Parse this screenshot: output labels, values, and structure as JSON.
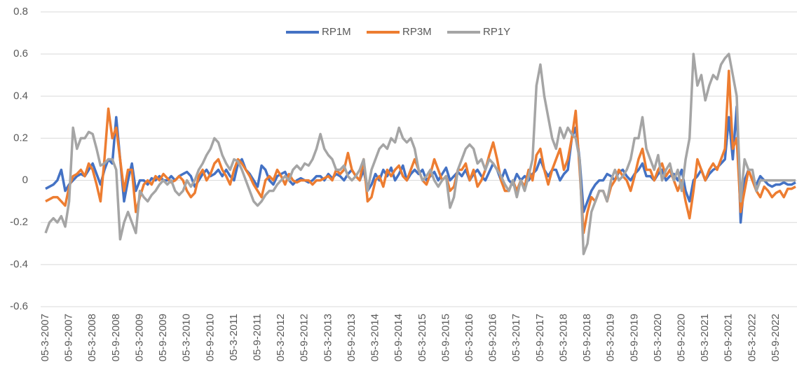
{
  "chart_data": {
    "type": "line",
    "categories": [
      "05-3-2007",
      null,
      null,
      null,
      null,
      null,
      "05-9-2007",
      null,
      null,
      null,
      null,
      null,
      "05-3-2008",
      null,
      null,
      null,
      null,
      null,
      "05-9-2008",
      null,
      null,
      null,
      null,
      null,
      "05-3-2009",
      null,
      null,
      null,
      null,
      null,
      "05-9-2009",
      null,
      null,
      null,
      null,
      null,
      "05-3-2010",
      null,
      null,
      null,
      null,
      null,
      "05-9-2010",
      null,
      null,
      null,
      null,
      null,
      "05-3-2011",
      null,
      null,
      null,
      null,
      null,
      "05-9-2011",
      null,
      null,
      null,
      null,
      null,
      "05-3-2012",
      null,
      null,
      null,
      null,
      null,
      "05-9-2012",
      null,
      null,
      null,
      null,
      null,
      "05-3-2013",
      null,
      null,
      null,
      null,
      null,
      "05-9-2013",
      null,
      null,
      null,
      null,
      null,
      "05-3-2014",
      null,
      null,
      null,
      null,
      null,
      "05-9-2014",
      null,
      null,
      null,
      null,
      null,
      "05-3-2015",
      null,
      null,
      null,
      null,
      null,
      "05-9-2015",
      null,
      null,
      null,
      null,
      null,
      "05-3-2016",
      null,
      null,
      null,
      null,
      null,
      "05-9-2016",
      null,
      null,
      null,
      null,
      null,
      "05-3-2017",
      null,
      null,
      null,
      null,
      null,
      "05-9-2017",
      null,
      null,
      null,
      null,
      null,
      "05-3-2018",
      null,
      null,
      null,
      null,
      null,
      "05-9-2018",
      null,
      null,
      null,
      null,
      null,
      "05-3-2019",
      null,
      null,
      null,
      null,
      null,
      "05-9-2019",
      null,
      null,
      null,
      null,
      null,
      "05-3-2020",
      null,
      null,
      null,
      null,
      null,
      "05-9-2020",
      null,
      null,
      null,
      null,
      null,
      "05-3-2021",
      null,
      null,
      null,
      null,
      null,
      "05-9-2021",
      null,
      null,
      null,
      null,
      null,
      "05-3-2022",
      null,
      null,
      null,
      null,
      null,
      "05-9-2022",
      null,
      null,
      null,
      null,
      null
    ],
    "series": [
      {
        "name": "RP1M",
        "color": "#4472c4",
        "values": [
          -0.04,
          -0.03,
          -0.02,
          0.0,
          0.05,
          -0.05,
          -0.02,
          0.0,
          0.02,
          0.03,
          0.02,
          0.05,
          0.08,
          0.03,
          -0.02,
          0.05,
          0.1,
          0.08,
          0.3,
          0.1,
          -0.1,
          0.0,
          0.08,
          -0.05,
          0.0,
          0.0,
          -0.02,
          0.01,
          0.0,
          0.02,
          0.0,
          0.0,
          0.02,
          0.0,
          0.02,
          0.03,
          0.04,
          0.02,
          -0.03,
          0.0,
          0.03,
          0.05,
          0.02,
          0.03,
          0.05,
          0.02,
          0.05,
          0.02,
          0.0,
          0.08,
          0.1,
          0.05,
          0.03,
          0.0,
          -0.03,
          0.07,
          0.05,
          0.0,
          -0.02,
          0.02,
          0.03,
          0.04,
          0.0,
          -0.02,
          0.0,
          0.01,
          0.0,
          -0.01,
          0.0,
          0.02,
          0.02,
          0.0,
          0.03,
          0.01,
          0.03,
          0.02,
          0.0,
          0.03,
          0.05,
          0.02,
          0.0,
          0.05,
          -0.05,
          -0.02,
          0.03,
          0.0,
          0.05,
          0.02,
          0.06,
          0.0,
          0.03,
          0.07,
          0.0,
          0.03,
          0.05,
          0.03,
          0.05,
          0.0,
          0.02,
          0.04,
          0.0,
          0.03,
          0.06,
          0.0,
          0.02,
          0.04,
          0.02,
          0.05,
          0.0,
          0.03,
          0.05,
          0.02,
          0.0,
          0.04,
          0.08,
          0.05,
          0.0,
          0.05,
          0.0,
          -0.02,
          0.03,
          0.0,
          0.02,
          0.0,
          0.03,
          0.05,
          0.1,
          0.05,
          0.02,
          0.05,
          0.05,
          0.0,
          0.03,
          0.05,
          0.2,
          0.25,
          0.1,
          -0.15,
          -0.1,
          -0.05,
          -0.02,
          0.0,
          0.0,
          0.03,
          0.02,
          0.0,
          0.04,
          0.05,
          0.02,
          0.0,
          0.03,
          0.05,
          0.08,
          0.02,
          0.02,
          0.0,
          0.03,
          0.05,
          0.0,
          0.02,
          0.03,
          0.0,
          0.05,
          -0.05,
          -0.1,
          0.0,
          0.02,
          0.05,
          0.0,
          0.03,
          0.05,
          0.06,
          0.08,
          0.1,
          0.3,
          0.1,
          0.35,
          -0.2,
          0.0,
          0.05,
          0.0,
          -0.02,
          0.02,
          0.0,
          -0.02,
          -0.03,
          -0.02,
          -0.02,
          -0.01,
          -0.02,
          -0.02,
          -0.01
        ]
      },
      {
        "name": "RP3M",
        "color": "#ed7d31",
        "values": [
          -0.1,
          -0.09,
          -0.08,
          -0.08,
          -0.1,
          -0.12,
          -0.03,
          0.02,
          0.03,
          0.05,
          0.02,
          0.08,
          0.05,
          -0.02,
          -0.1,
          0.1,
          0.34,
          0.2,
          0.25,
          0.1,
          -0.05,
          0.05,
          0.05,
          -0.15,
          -0.08,
          -0.02,
          0.0,
          -0.02,
          0.02,
          0.0,
          0.03,
          0.01,
          -0.01,
          0.0,
          0.02,
          0.0,
          -0.05,
          -0.08,
          -0.06,
          0.02,
          0.05,
          0.0,
          0.03,
          0.08,
          0.1,
          0.05,
          0.02,
          -0.02,
          0.05,
          0.1,
          0.08,
          0.05,
          0.02,
          -0.02,
          -0.05,
          -0.08,
          0.0,
          0.02,
          0.0,
          0.05,
          0.02,
          -0.02,
          0.03,
          0.0,
          -0.01,
          0.0,
          0.0,
          0.0,
          -0.02,
          0.0,
          0.0,
          0.01,
          0.02,
          0.0,
          0.05,
          0.03,
          0.05,
          0.13,
          0.05,
          0.02,
          0.0,
          0.1,
          -0.1,
          -0.08,
          0.0,
          0.02,
          -0.03,
          0.05,
          0.02,
          0.05,
          0.07,
          0.02,
          0.0,
          0.05,
          0.1,
          0.05,
          0.0,
          -0.02,
          0.03,
          0.1,
          0.05,
          0.0,
          0.02,
          -0.05,
          -0.03,
          0.05,
          0.05,
          0.08,
          0.0,
          0.05,
          -0.03,
          0.0,
          0.05,
          0.12,
          0.18,
          0.1,
          0.0,
          -0.05,
          -0.05,
          0.0,
          -0.05,
          0.0,
          -0.03,
          0.05,
          0.0,
          0.12,
          0.15,
          0.05,
          -0.02,
          0.05,
          0.1,
          0.15,
          0.05,
          0.1,
          0.2,
          0.33,
          0.05,
          -0.25,
          -0.15,
          -0.08,
          -0.1,
          -0.05,
          -0.05,
          -0.1,
          -0.03,
          0.0,
          0.05,
          0.02,
          0.0,
          -0.05,
          0.02,
          0.1,
          0.15,
          0.05,
          0.05,
          0.0,
          0.05,
          0.08,
          0.02,
          0.05,
          0.0,
          -0.05,
          0.0,
          -0.1,
          -0.18,
          -0.05,
          0.1,
          0.05,
          0.0,
          0.05,
          0.08,
          0.05,
          0.1,
          0.15,
          0.52,
          0.15,
          0.2,
          -0.15,
          -0.05,
          0.05,
          0.0,
          -0.05,
          -0.08,
          -0.03,
          -0.05,
          -0.08,
          -0.06,
          -0.05,
          -0.08,
          -0.04,
          -0.04,
          -0.03
        ]
      },
      {
        "name": "RP1Y",
        "color": "#a5a5a5",
        "values": [
          -0.25,
          -0.2,
          -0.18,
          -0.2,
          -0.17,
          -0.22,
          -0.1,
          0.25,
          0.15,
          0.2,
          0.2,
          0.23,
          0.22,
          0.15,
          0.07,
          0.08,
          0.1,
          0.1,
          0.05,
          -0.28,
          -0.2,
          -0.15,
          -0.2,
          -0.25,
          -0.05,
          -0.08,
          -0.1,
          -0.07,
          -0.05,
          -0.02,
          0.0,
          -0.02,
          0.0,
          -0.05,
          -0.07,
          -0.05,
          0.0,
          -0.03,
          0.0,
          0.05,
          0.08,
          0.12,
          0.15,
          0.2,
          0.18,
          0.12,
          0.08,
          0.05,
          0.1,
          0.09,
          0.05,
          0.0,
          -0.05,
          -0.1,
          -0.12,
          -0.1,
          -0.07,
          -0.05,
          -0.05,
          -0.02,
          0.0,
          0.02,
          0.0,
          0.05,
          0.07,
          0.05,
          0.08,
          0.07,
          0.1,
          0.15,
          0.22,
          0.15,
          0.12,
          0.1,
          0.05,
          0.05,
          0.07,
          0.02,
          0.0,
          0.02,
          0.05,
          0.1,
          -0.05,
          0.05,
          0.1,
          0.15,
          0.17,
          0.15,
          0.2,
          0.18,
          0.25,
          0.2,
          0.18,
          0.2,
          0.15,
          0.05,
          0.0,
          0.02,
          0.05,
          0.0,
          -0.03,
          0.0,
          0.02,
          -0.13,
          -0.08,
          0.05,
          0.1,
          0.15,
          0.17,
          0.15,
          0.08,
          0.1,
          0.05,
          0.1,
          0.08,
          0.05,
          0.02,
          -0.02,
          -0.05,
          0.0,
          -0.08,
          0.0,
          -0.05,
          0.02,
          0.1,
          0.45,
          0.55,
          0.4,
          0.3,
          0.2,
          0.15,
          0.25,
          0.2,
          0.25,
          0.22,
          0.2,
          0.1,
          -0.35,
          -0.3,
          -0.15,
          -0.1,
          -0.05,
          -0.05,
          -0.1,
          0.0,
          0.05,
          0.0,
          0.02,
          0.05,
          0.1,
          0.2,
          0.2,
          0.3,
          0.15,
          0.1,
          0.05,
          0.12,
          0.0,
          0.05,
          0.08,
          0.0,
          0.05,
          -0.05,
          0.1,
          0.2,
          0.6,
          0.45,
          0.5,
          0.38,
          0.45,
          0.5,
          0.48,
          0.55,
          0.58,
          0.6,
          0.5,
          0.4,
          -0.1,
          0.1,
          0.05,
          0.05,
          -0.05,
          0.0,
          0.0,
          0.0,
          0.0,
          0.0,
          0.0,
          0.0,
          0.0,
          0.0,
          0.0
        ]
      }
    ],
    "ylim": [
      -0.6,
      0.8
    ],
    "yticks": [
      -0.6,
      -0.4,
      -0.2,
      0,
      0.2,
      0.4,
      0.6,
      0.8
    ],
    "grid": true,
    "legend": "top"
  }
}
